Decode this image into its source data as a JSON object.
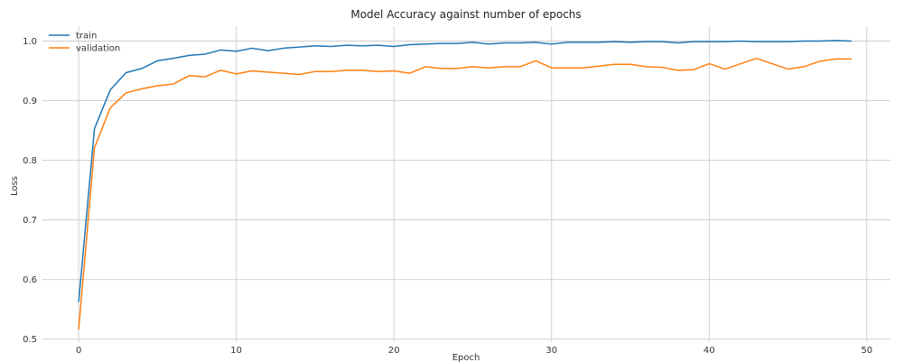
{
  "chart_data": {
    "type": "line",
    "title": "Model Accuracy against number of epochs",
    "xlabel": "Epoch",
    "ylabel": "Loss",
    "xlim": [
      -2.3,
      51.5
    ],
    "ylim": [
      0.495,
      1.025
    ],
    "xticks": [
      0,
      10,
      20,
      30,
      40,
      50
    ],
    "yticks": [
      0.5,
      0.6,
      0.7,
      0.8,
      0.9,
      1.0
    ],
    "xtick_labels": [
      "0",
      "10",
      "20",
      "30",
      "40",
      "50"
    ],
    "ytick_labels": [
      "0.5",
      "0.6",
      "0.7",
      "0.8",
      "0.9",
      "1.0"
    ],
    "grid": true,
    "legend_position": "top-left",
    "x": [
      0,
      1,
      2,
      3,
      4,
      5,
      6,
      7,
      8,
      9,
      10,
      11,
      12,
      13,
      14,
      15,
      16,
      17,
      18,
      19,
      20,
      21,
      22,
      23,
      24,
      25,
      26,
      27,
      28,
      29,
      30,
      31,
      32,
      33,
      34,
      35,
      36,
      37,
      38,
      39,
      40,
      41,
      42,
      43,
      44,
      45,
      46,
      47,
      48,
      49
    ],
    "series": [
      {
        "name": "train",
        "color": "#1f77b4",
        "values": [
          0.563,
          0.853,
          0.918,
          0.947,
          0.954,
          0.967,
          0.971,
          0.976,
          0.978,
          0.985,
          0.983,
          0.988,
          0.984,
          0.988,
          0.99,
          0.992,
          0.991,
          0.993,
          0.992,
          0.993,
          0.991,
          0.994,
          0.995,
          0.996,
          0.996,
          0.998,
          0.995,
          0.997,
          0.997,
          0.998,
          0.995,
          0.998,
          0.998,
          0.998,
          0.999,
          0.998,
          0.999,
          0.999,
          0.997,
          0.999,
          0.999,
          0.999,
          1.0,
          0.999,
          0.999,
          0.999,
          1.0,
          1.0,
          1.001,
          1.0
        ]
      },
      {
        "name": "validation",
        "color": "#ff7f0e",
        "values": [
          0.517,
          0.821,
          0.888,
          0.913,
          0.92,
          0.925,
          0.928,
          0.942,
          0.94,
          0.951,
          0.945,
          0.95,
          0.948,
          0.946,
          0.944,
          0.949,
          0.949,
          0.951,
          0.951,
          0.949,
          0.95,
          0.946,
          0.957,
          0.954,
          0.954,
          0.957,
          0.955,
          0.957,
          0.957,
          0.967,
          0.955,
          0.955,
          0.955,
          0.958,
          0.961,
          0.961,
          0.957,
          0.956,
          0.951,
          0.952,
          0.962,
          0.953,
          0.962,
          0.971,
          0.962,
          0.953,
          0.957,
          0.966,
          0.97,
          0.97
        ]
      }
    ]
  }
}
